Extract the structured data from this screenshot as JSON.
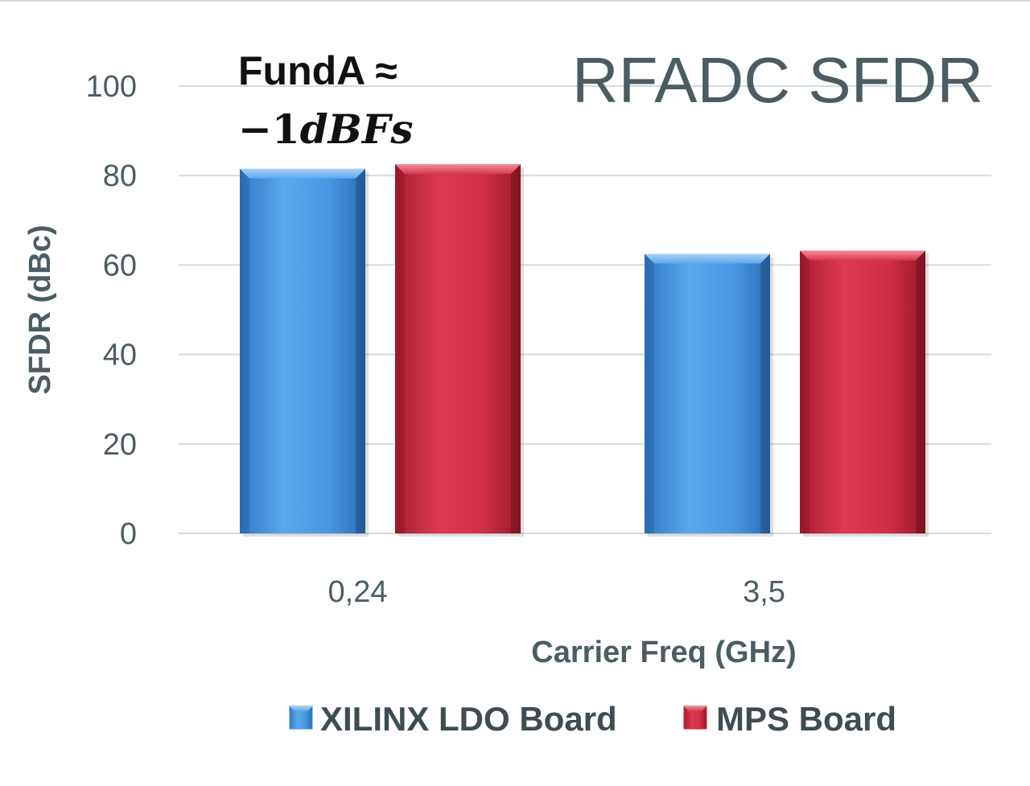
{
  "chart_data": {
    "type": "bar",
    "title": "RFADC SFDR",
    "annotation": {
      "line1": "FundA ≈",
      "line2_prefix": "−1",
      "line2_italic": "dBFs"
    },
    "xlabel": "Carrier Freq (GHz)",
    "ylabel": "SFDR (dBc)",
    "categories": [
      "0,24",
      "3,5"
    ],
    "series": [
      {
        "name": "XILINX LDO Board",
        "values": [
          81.5,
          62.5
        ],
        "color": "#3f8fdc"
      },
      {
        "name": "MPS Board",
        "values": [
          82.5,
          63.2
        ],
        "color": "#c8283a"
      }
    ],
    "ylim": [
      0,
      100
    ],
    "yticks": [
      0,
      20,
      40,
      60,
      80,
      100
    ],
    "grid": true,
    "legend_position": "bottom"
  }
}
